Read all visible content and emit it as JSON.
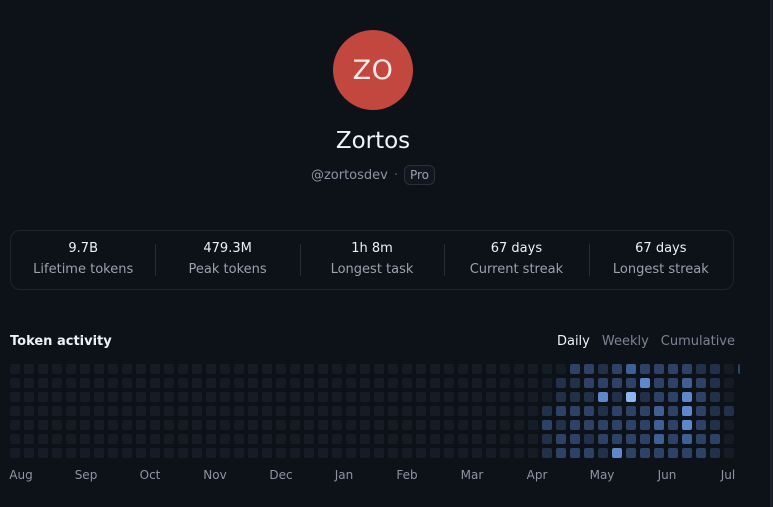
{
  "profile": {
    "initials": "ZO",
    "avatar_color": "#c1473f",
    "name": "Zortos",
    "handle": "@zortosdev",
    "separator": "·",
    "plan": "Pro"
  },
  "stats": [
    {
      "value": "9.7B",
      "label": "Lifetime tokens"
    },
    {
      "value": "479.3M",
      "label": "Peak tokens"
    },
    {
      "value": "1h 8m",
      "label": "Longest task"
    },
    {
      "value": "67 days",
      "label": "Current streak"
    },
    {
      "value": "67 days",
      "label": "Longest streak"
    }
  ],
  "activity": {
    "title": "Token activity",
    "tabs": [
      {
        "label": "Daily",
        "active": true
      },
      {
        "label": "Weekly",
        "active": false
      },
      {
        "label": "Cumulative",
        "active": false
      }
    ],
    "months": [
      "Aug",
      "Sep",
      "Oct",
      "Nov",
      "Dec",
      "Jan",
      "Feb",
      "Mar",
      "Apr",
      "May",
      "Jun",
      "Jul"
    ],
    "palette": [
      "#161c26",
      "#223049",
      "#2d4266",
      "#3f5f95",
      "#5f87cc",
      "#8fb5f2"
    ],
    "levels": [
      "00000000000000000000000000000000000000002212322221102",
      "0000000000000000000000000000000000000001122224223210",
      "0000000000000000000000000000000000000001114151224210",
      "0000000000000000000000000000000000000012221222324211",
      "0000000000000000000000000000000000000021222222324210",
      "0000000000000000000000000000000000000012212222323220",
      "0000000000000000000000000000000000000012221422222210"
    ]
  }
}
